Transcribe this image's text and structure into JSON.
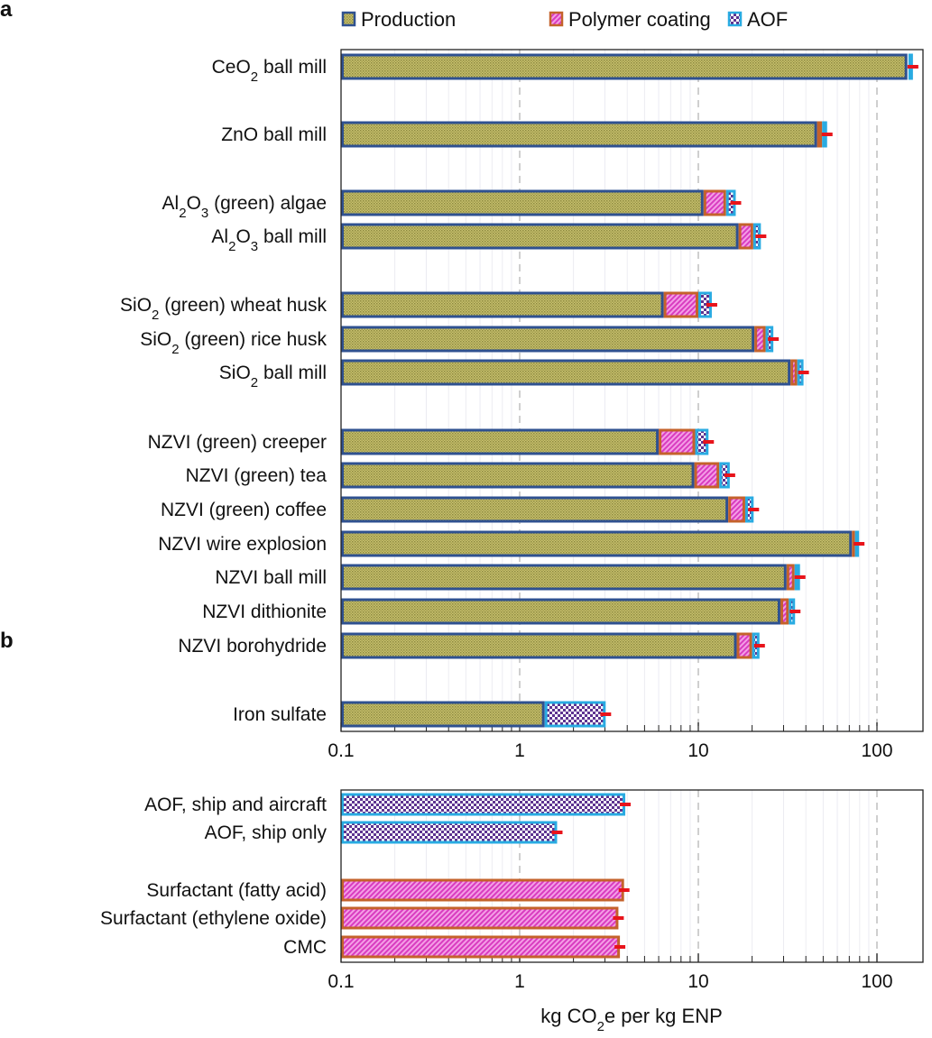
{
  "chart_data": [
    {
      "panel_label": "a",
      "type": "bar",
      "orientation": "horizontal",
      "stacked": true,
      "x_scale": "log",
      "xlim": [
        0.1,
        180
      ],
      "xticks": [
        "0.1",
        "1",
        "10",
        "100"
      ],
      "xtick_values": [
        0.1,
        1,
        10,
        100
      ],
      "grid": "vertical; dashed at decades, light minor lines",
      "legend": {
        "placement": "top",
        "entries": [
          {
            "name": "Production",
            "fill": "#b5ad5c",
            "edge": "#2f5190"
          },
          {
            "name": "Polymer coating",
            "fill": "#e055c8",
            "edge": "#c4622b"
          },
          {
            "name": "AOF",
            "fill": "#6b3fa0",
            "edge": "#29abe2"
          }
        ]
      },
      "categories": [
        "CeO₂ ball mill",
        "ZnO ball mill",
        "Al₂O₃ (green) algae",
        "Al₂O₃ ball mill",
        "SiO₂ (green) wheat husk",
        "SiO₂ (green) rice husk",
        "SiO₂ ball mill",
        "NZVI (green) creeper",
        "NZVI (green) tea",
        "NZVI (green) coffee",
        "NZVI wire explosion",
        "NZVI ball mill",
        "NZVI dithionite",
        "NZVI borohydride",
        "Iron sulfate"
      ],
      "groups": [
        0,
        1,
        2,
        2,
        3,
        3,
        3,
        4,
        4,
        4,
        4,
        4,
        4,
        4,
        5
      ],
      "series": [
        {
          "name": "Production",
          "values": [
            148,
            46.2,
            10.7,
            16.8,
            6.4,
            20.6,
            32.8,
            6.0,
            9.5,
            14.7,
            72.4,
            31.2,
            28.8,
            16.4,
            1.38
          ]
        },
        {
          "name": "Polymer coating",
          "values": [
            2,
            3.1,
            3.6,
            3.5,
            3.6,
            3.2,
            3.0,
            3.6,
            3.6,
            3.6,
            2.9,
            3.4,
            3.3,
            3.6,
            0
          ]
        },
        {
          "name": "AOF",
          "values": [
            9,
            3.3,
            1.9,
            2.1,
            1.9,
            2.5,
            3.0,
            1.8,
            1.9,
            2.1,
            4.1,
            2.5,
            2.7,
            2.0,
            1.65
          ]
        }
      ],
      "error_bars": "red, at bar totals"
    },
    {
      "panel_label": "b",
      "type": "bar",
      "orientation": "horizontal",
      "x_scale": "log",
      "xlim": [
        0.1,
        180
      ],
      "xticks": [
        "0.1",
        "1",
        "10",
        "100"
      ],
      "xtick_values": [
        0.1,
        1,
        10,
        100
      ],
      "xlabel": "kg CO₂e per kg ENP",
      "categories": [
        "AOF, ship and aircraft",
        "AOF, ship only",
        "Surfactant (fatty acid)",
        "Surfactant (ethylene oxide)",
        "CMC"
      ],
      "groups": [
        0,
        0,
        1,
        1,
        1
      ],
      "series_type": [
        "AOF",
        "AOF",
        "Polymer coating",
        "Polymer coating",
        "Polymer coating"
      ],
      "values": [
        3.9,
        1.62,
        3.84,
        3.57,
        3.64
      ],
      "error_bars": "red, at bar ends"
    }
  ]
}
